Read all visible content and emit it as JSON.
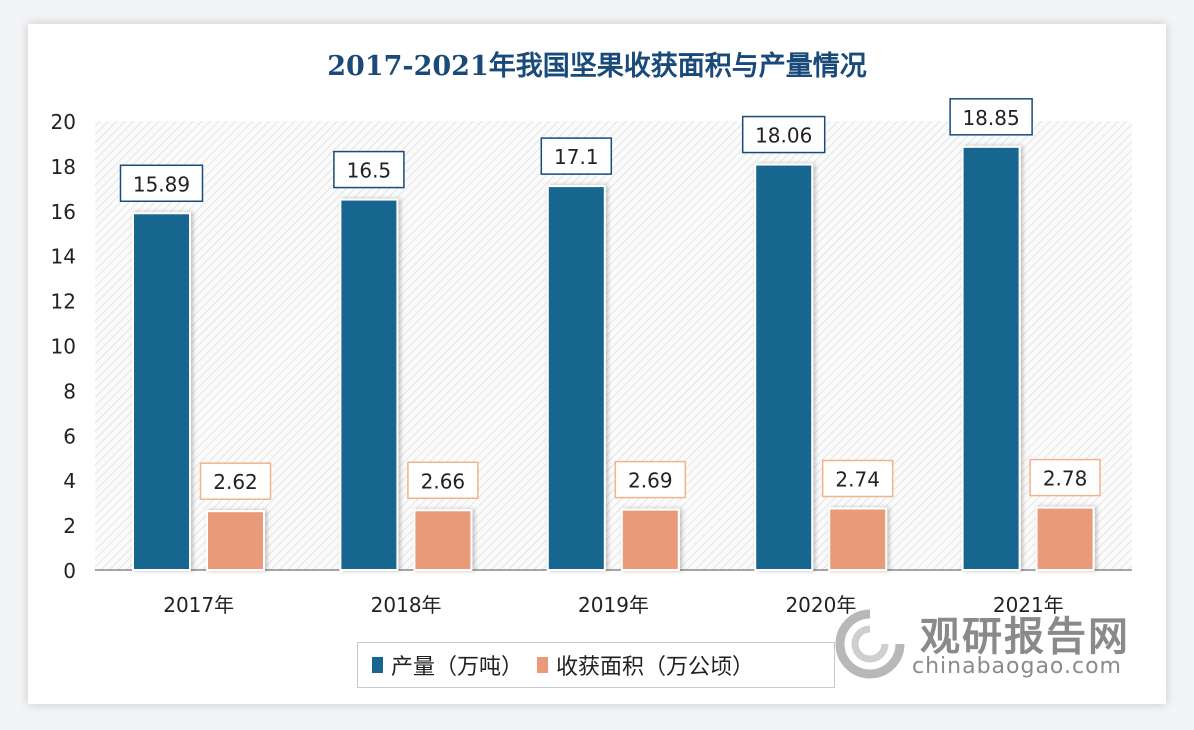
{
  "chart_data": {
    "type": "bar",
    "title": "2017-2021年我国坚果收获面积与产量情况",
    "categories": [
      "2017年",
      "2018年",
      "2019年",
      "2020年",
      "2021年"
    ],
    "series": [
      {
        "name": "产量（万吨）",
        "values": [
          15.89,
          16.5,
          17.1,
          18.06,
          18.85
        ],
        "color": "#17668f",
        "label_border": "#1a4a7a"
      },
      {
        "name": "收获面积（万公顷）",
        "values": [
          2.62,
          2.66,
          2.69,
          2.74,
          2.78
        ],
        "color": "#e99a78",
        "label_border": "#f0b48c"
      }
    ],
    "ylim": [
      0,
      20
    ],
    "yticks": [
      0,
      2,
      4,
      6,
      8,
      10,
      12,
      14,
      16,
      18,
      20
    ],
    "grid": false,
    "background": "diagonal-hatch",
    "legend_position": "bottom-center"
  },
  "watermark": {
    "name": "观研报告网",
    "url": "chinabaogao.com"
  }
}
